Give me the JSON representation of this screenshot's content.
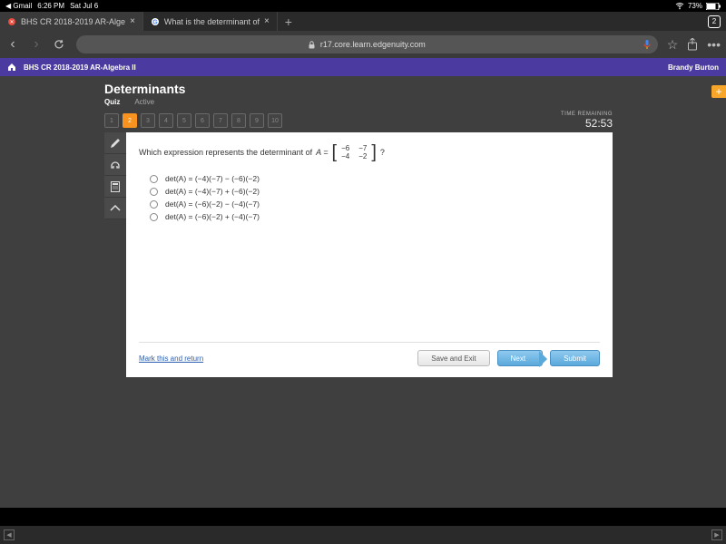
{
  "status": {
    "back_app": "Gmail",
    "time": "6:26 PM",
    "date": "Sat Jul 6",
    "battery": "73%"
  },
  "tabs": {
    "items": [
      {
        "title": "BHS CR 2018-2019 AR-Alge",
        "active": true
      },
      {
        "title": "What is the determinant of",
        "active": false
      }
    ],
    "count": "2"
  },
  "url": "r17.core.learn.edgenuity.com",
  "header": {
    "course": "BHS CR 2018-2019 AR-Algebra II",
    "user": "Brandy Burton"
  },
  "quiz": {
    "title": "Determinants",
    "label_quiz": "Quiz",
    "label_active": "Active",
    "numbers": [
      "1",
      "2",
      "3",
      "4",
      "5",
      "6",
      "7",
      "8",
      "9",
      "10"
    ],
    "current": 2,
    "timer_label": "TIME REMAINING",
    "timer_value": "52:53"
  },
  "question": {
    "stem_prefix": "Which expression represents the determinant of",
    "matrix_var": "A =",
    "matrix": [
      [
        "−6",
        "−7"
      ],
      [
        "−4",
        "−2"
      ]
    ],
    "stem_suffix": "?",
    "choices": [
      "det(A) = (−4)(−7) − (−6)(−2)",
      "det(A) = (−4)(−7) + (−6)(−2)",
      "det(A) = (−6)(−2) − (−4)(−7)",
      "det(A) = (−6)(−2) + (−4)(−7)"
    ],
    "mark_link": "Mark this and return",
    "btn_save": "Save and Exit",
    "btn_next": "Next",
    "btn_submit": "Submit"
  },
  "colors": {
    "header_purple": "#4b3a9f",
    "accent_orange": "#f7931e",
    "page_bg": "#3f3f3f",
    "btn_blue_top": "#8fc9f0",
    "btn_blue_bottom": "#5aa9db"
  }
}
